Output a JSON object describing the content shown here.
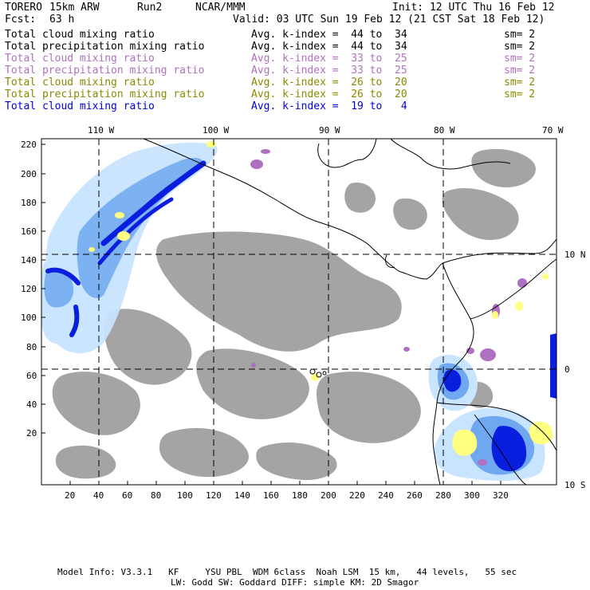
{
  "header": {
    "model": "TORERO",
    "resolution": "15km ARW",
    "run": "Run2",
    "org": "NCAR/MMM",
    "init": "Init: 12 UTC Thu 16 Feb 12",
    "fcst_label": "Fcst:",
    "fcst_value": "63 h",
    "valid": "Valid: 03 UTC Sun 19 Feb 12 (21 CST Sat 18 Feb 12)"
  },
  "legend": [
    {
      "field": "Total cloud mixing ratio",
      "range": "Avg. k-index =  44 to  34",
      "sm": "sm= 2",
      "color": "#000000"
    },
    {
      "field": "Total precipitation mixing ratio",
      "range": "Avg. k-index =  44 to  34",
      "sm": "sm= 2",
      "color": "#000000"
    },
    {
      "field": "Total cloud mixing ratio",
      "range": "Avg. k-index =  33 to  25",
      "sm": "sm= 2",
      "color": "#b070c0"
    },
    {
      "field": "Total precipitation mixing ratio",
      "range": "Avg. k-index =  33 to  25",
      "sm": "sm= 2",
      "color": "#b070c0"
    },
    {
      "field": "Total cloud mixing ratio",
      "range": "Avg. k-index =  26 to  20",
      "sm": "sm= 2",
      "color": "#8a8a00"
    },
    {
      "field": "Total precipitation mixing ratio",
      "range": "Avg. k-index =  26 to  20",
      "sm": "sm= 2",
      "color": "#8a8a00"
    },
    {
      "field": "Total cloud mixing ratio",
      "range": "Avg. k-index =  19 to   4",
      "sm": "",
      "color": "#0000e0"
    }
  ],
  "axes": {
    "lon_labels": [
      "110 W",
      "100 W",
      "90 W",
      "80 W",
      "70 W"
    ],
    "lat_labels": [
      "10 N",
      "0",
      "10 S"
    ],
    "y_ticks": [
      "220",
      "200",
      "180",
      "160",
      "140",
      "120",
      "100",
      "80",
      "60",
      "40",
      "20"
    ],
    "x_ticks": [
      "20",
      "40",
      "60",
      "80",
      "100",
      "120",
      "140",
      "160",
      "180",
      "200",
      "220",
      "240",
      "260",
      "280",
      "300",
      "320"
    ]
  },
  "footer": {
    "line1": "Model Info: V3.3.1   KF     YSU PBL  WDM 6class  Noah LSM  15 km,   44 levels,   55 sec",
    "line2": "LW: Godd SW: Goddard DIFF: simple KM: 2D Smagor"
  },
  "colors": {
    "gray_cloud": "#a0a0a0",
    "light_blue": "#c8e4ff",
    "mid_blue": "#6fa8f0",
    "deep_blue": "#0a1ee0",
    "yellow": "#ffff80",
    "purple": "#b070c0",
    "grid": "#000000"
  }
}
